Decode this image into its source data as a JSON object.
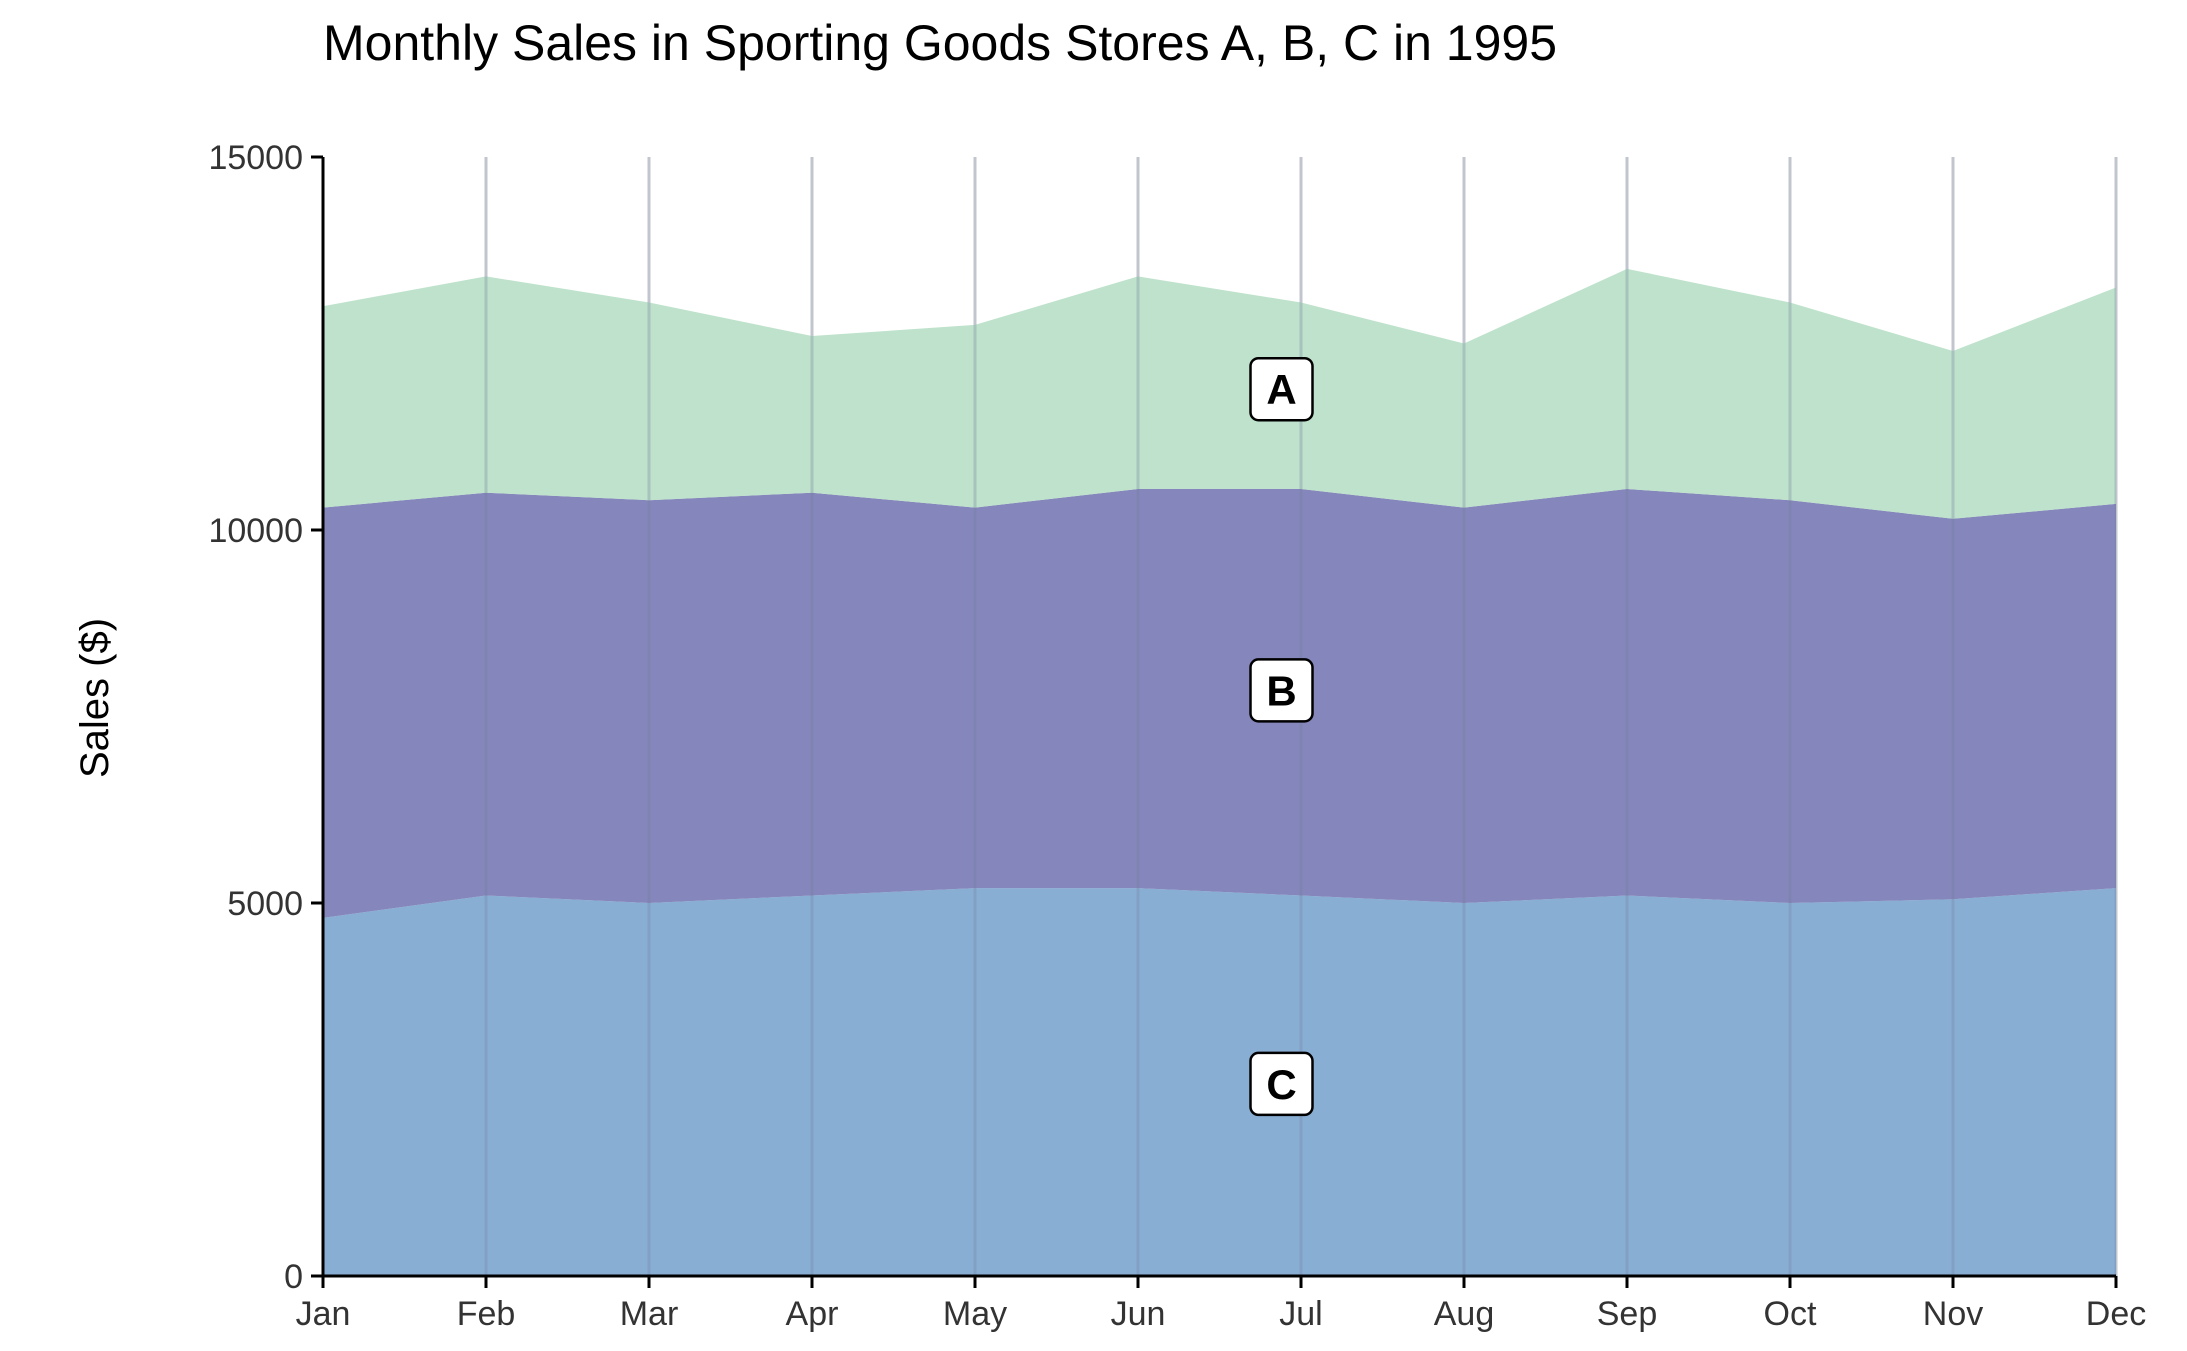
{
  "chart_data": {
    "type": "area",
    "stacked": true,
    "title": "Monthly Sales in Sporting Goods Stores A, B, C in 1995",
    "xlabel": "",
    "ylabel": "Sales ($)",
    "x": [
      "Jan",
      "Feb",
      "Mar",
      "Apr",
      "May",
      "Jun",
      "Jul",
      "Aug",
      "Sep",
      "Oct",
      "Nov",
      "Dec"
    ],
    "ylim": [
      0,
      15000
    ],
    "yticks": [
      "0",
      "5000",
      "10000",
      "15000"
    ],
    "grid": "vertical",
    "series": [
      {
        "name": "C",
        "color": "#6f9ccb",
        "values": [
          4800,
          5100,
          5000,
          5100,
          5200,
          5200,
          5100,
          5000,
          5100,
          5000,
          5050,
          5200
        ]
      },
      {
        "name": "B",
        "color": "#6a6bac",
        "values": [
          5500,
          5400,
          5400,
          5400,
          5100,
          5350,
          5450,
          5300,
          5450,
          5400,
          5100,
          5150
        ]
      },
      {
        "name": "A",
        "color": "#b0dcc0",
        "values": [
          2700,
          2900,
          2650,
          2100,
          2450,
          2850,
          2500,
          2200,
          2950,
          2650,
          2250,
          2900
        ]
      }
    ],
    "area_labels": [
      "A",
      "B",
      "C"
    ]
  }
}
